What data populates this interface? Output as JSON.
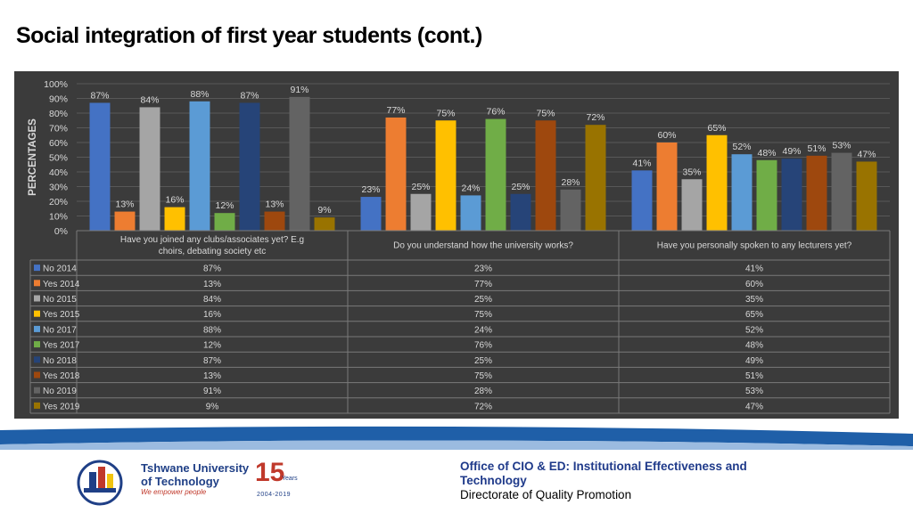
{
  "page": {
    "title": "Social integration of first year students (cont.)"
  },
  "footer": {
    "line1": "Office of CIO & ED: Institutional  Effectiveness and",
    "line2": "Technology",
    "line3": "Directorate of Quality Promotion"
  },
  "logo": {
    "name_line1": "Tshwane University",
    "name_line2": "of Technology",
    "slogan": "We empower people",
    "anniversary_number": "15",
    "anniversary_word": "Years",
    "anniversary_range": "2004-2019"
  },
  "chart_data": {
    "type": "bar",
    "ylabel": "PERCENTAGES",
    "ylim": [
      0,
      100
    ],
    "yticks": [
      "0%",
      "10%",
      "20%",
      "30%",
      "40%",
      "50%",
      "60%",
      "70%",
      "80%",
      "90%",
      "100%"
    ],
    "grid": true,
    "categories": [
      "Have you joined any clubs/associates yet? E.g choirs, debating society etc",
      "Do you understand how the university works?",
      "Have you personally spoken to any lecturers yet?"
    ],
    "series": [
      {
        "name": "No 2014",
        "color": "#4472c4",
        "values": [
          87,
          23,
          41
        ],
        "labels": [
          "87%",
          "23%",
          "41%"
        ]
      },
      {
        "name": "Yes 2014",
        "color": "#ed7d31",
        "values": [
          13,
          77,
          60
        ],
        "labels": [
          "13%",
          "77%",
          "60%"
        ]
      },
      {
        "name": "No 2015",
        "color": "#a5a5a5",
        "values": [
          84,
          25,
          35
        ],
        "labels": [
          "84%",
          "25%",
          "35%"
        ]
      },
      {
        "name": "Yes 2015",
        "color": "#ffc000",
        "values": [
          16,
          75,
          65
        ],
        "labels": [
          "16%",
          "75%",
          "65%"
        ]
      },
      {
        "name": "No 2017",
        "color": "#5b9bd5",
        "values": [
          88,
          24,
          52
        ],
        "labels": [
          "88%",
          "24%",
          "52%"
        ]
      },
      {
        "name": "Yes 2017",
        "color": "#70ad47",
        "values": [
          12,
          76,
          48
        ],
        "labels": [
          "12%",
          "76%",
          "48%"
        ]
      },
      {
        "name": "No 2018",
        "color": "#264478",
        "values": [
          87,
          25,
          49
        ],
        "labels": [
          "87%",
          "25%",
          "49%"
        ]
      },
      {
        "name": "Yes 2018",
        "color": "#9e480e",
        "values": [
          13,
          75,
          51
        ],
        "labels": [
          "13%",
          "75%",
          "51%"
        ]
      },
      {
        "name": "No 2019",
        "color": "#636363",
        "values": [
          91,
          28,
          53
        ],
        "labels": [
          "91%",
          "28%",
          "53%"
        ]
      },
      {
        "name": "Yes 2019",
        "color": "#997300",
        "values": [
          9,
          72,
          47
        ],
        "labels": [
          "9%",
          "72%",
          "47%"
        ]
      }
    ]
  }
}
